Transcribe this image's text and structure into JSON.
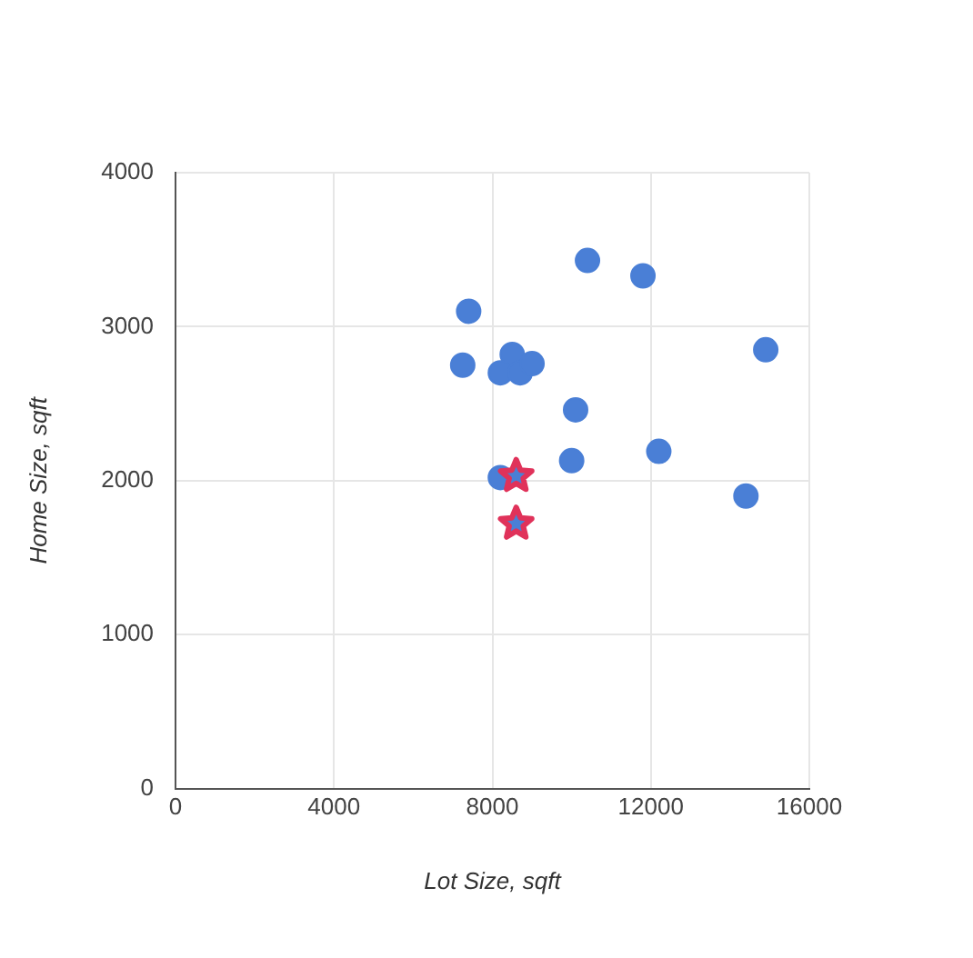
{
  "chart_data": {
    "type": "scatter",
    "xlabel": "Lot Size, sqft",
    "ylabel": "Home Size, sqft",
    "xlim": [
      0,
      16000
    ],
    "xticks": [
      0,
      4000,
      8000,
      12000,
      16000
    ],
    "ylim": [
      0,
      4000
    ],
    "yticks": [
      0,
      1000,
      2000,
      3000,
      4000
    ],
    "grid": true,
    "legend": false,
    "series": [
      {
        "color": "#4a7fd6",
        "marker": "circle",
        "x": [
          7400,
          7250,
          10400,
          11800,
          14900,
          10100,
          10000,
          12200,
          14400,
          8500,
          8200,
          8700,
          9000,
          8200
        ],
        "values": [
          3100,
          2750,
          3430,
          3330,
          2850,
          2460,
          2130,
          2190,
          1900,
          2820,
          2700,
          2700,
          2760,
          2020
        ]
      },
      {
        "color": "#e0325a",
        "marker": "star",
        "x": [
          8600,
          8600
        ],
        "values": [
          2030,
          1720
        ]
      }
    ]
  }
}
